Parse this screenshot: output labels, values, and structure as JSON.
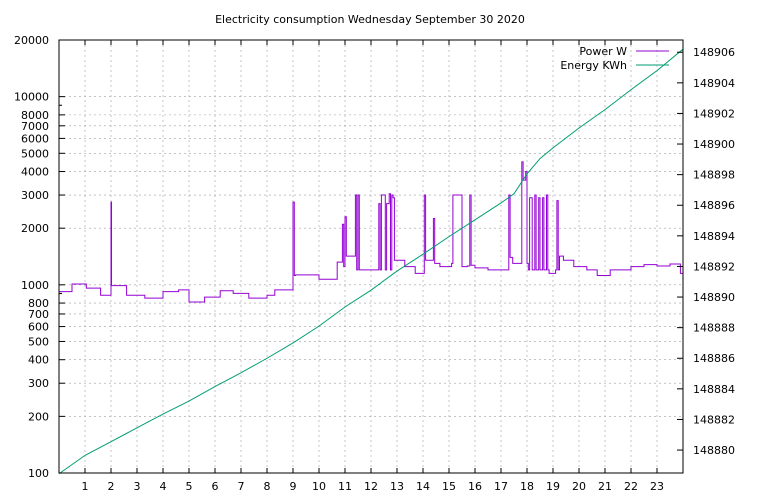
{
  "chart_data": {
    "type": "line",
    "title": "Electricity consumption Wednesday September 30 2020",
    "xlabel": "",
    "ylabel": "",
    "y2label": "",
    "grid": true,
    "legend_position": "top-right",
    "xlim": [
      0,
      24
    ],
    "x_ticks": [
      1,
      2,
      3,
      4,
      5,
      6,
      7,
      8,
      9,
      10,
      11,
      12,
      13,
      14,
      15,
      16,
      17,
      18,
      19,
      20,
      21,
      22,
      23
    ],
    "y_scale": "log",
    "ylim": [
      100,
      20000
    ],
    "y_ticks": [
      100,
      200,
      300,
      400,
      500,
      600,
      700,
      800,
      1000,
      2000,
      3000,
      4000,
      5000,
      6000,
      7000,
      8000,
      10000,
      20000
    ],
    "y2lim": [
      148878.5,
      148906.8
    ],
    "y2_ticks": [
      148880,
      148882,
      148884,
      148886,
      148888,
      148890,
      148892,
      148894,
      148896,
      148898,
      148900,
      148902,
      148904,
      148906
    ],
    "series": [
      {
        "name": "Power W",
        "color": "#9400d3",
        "axis": "left",
        "step": true,
        "x": [
          0,
          0.5,
          1.05,
          1.6,
          2,
          2.02,
          2.08,
          2.6,
          3.3,
          4,
          4.6,
          5,
          5.6,
          6.2,
          6.7,
          7.3,
          8,
          8.3,
          9,
          9.05,
          9.1,
          9.15,
          10,
          10.7,
          10.9,
          10.95,
          11,
          11.05,
          11.15,
          11.4,
          11.45,
          11.5,
          11.55,
          11.7,
          12.3,
          12.35,
          12.4,
          12.55,
          12.6,
          12.7,
          12.75,
          12.8,
          12.85,
          12.9,
          13.3,
          13.7,
          14.05,
          14.1,
          14.4,
          14.45,
          14.65,
          15.1,
          15.15,
          15.5,
          15.55,
          15.7,
          15.8,
          15.85,
          16,
          16.5,
          17.3,
          17.35,
          17.45,
          17.8,
          17.85,
          17.95,
          18,
          18.05,
          18.1,
          18.2,
          18.3,
          18.35,
          18.45,
          18.5,
          18.6,
          18.65,
          18.75,
          18.8,
          18.85,
          19.1,
          19.15,
          19.2,
          19.25,
          19.3,
          19.4,
          19.8,
          20.3,
          20.7,
          21.2,
          22,
          22.5,
          23,
          23.5,
          23.9
        ],
        "y": [
          920,
          1010,
          960,
          880,
          2750,
          990,
          990,
          880,
          850,
          920,
          940,
          810,
          860,
          930,
          900,
          850,
          880,
          940,
          2750,
          1120,
          1130,
          1130,
          1070,
          1320,
          2100,
          1250,
          2300,
          1420,
          1420,
          3000,
          1200,
          3000,
          1200,
          1200,
          2700,
          1200,
          3000,
          1200,
          2700,
          3050,
          1200,
          3000,
          2900,
          1350,
          1250,
          1150,
          3000,
          1350,
          2250,
          1300,
          1250,
          1300,
          3000,
          1250,
          1250,
          1260,
          3000,
          1270,
          1230,
          1200,
          3000,
          1400,
          1300,
          4500,
          3600,
          4000,
          1300,
          1200,
          2900,
          1200,
          3000,
          1200,
          2900,
          1200,
          2900,
          1200,
          3000,
          1200,
          1150,
          1200,
          2800,
          1200,
          1420,
          1420,
          1350,
          1250,
          1200,
          1120,
          1200,
          1250,
          1280,
          1260,
          1290,
          1150
        ]
      },
      {
        "name": "Energy KWh",
        "color": "#009e73",
        "axis": "right",
        "step": false,
        "x": [
          0,
          1,
          2,
          3,
          4,
          5,
          6,
          7,
          8,
          9,
          10,
          10.6,
          11,
          12,
          13,
          14,
          15,
          16,
          17,
          17.5,
          18,
          18.5,
          19,
          20,
          21,
          22,
          23,
          24
        ],
        "y": [
          148878.45,
          148879.65,
          148880.55,
          148881.45,
          148882.35,
          148883.2,
          148884.15,
          148885.05,
          148886.0,
          148887.0,
          148888.1,
          148888.85,
          148889.35,
          148890.45,
          148891.7,
          148892.8,
          148893.95,
          148895.05,
          148896.15,
          148896.75,
          148898.05,
          148899.05,
          148899.75,
          148901.05,
          148902.25,
          148903.55,
          148904.8,
          148906.2
        ]
      }
    ]
  }
}
